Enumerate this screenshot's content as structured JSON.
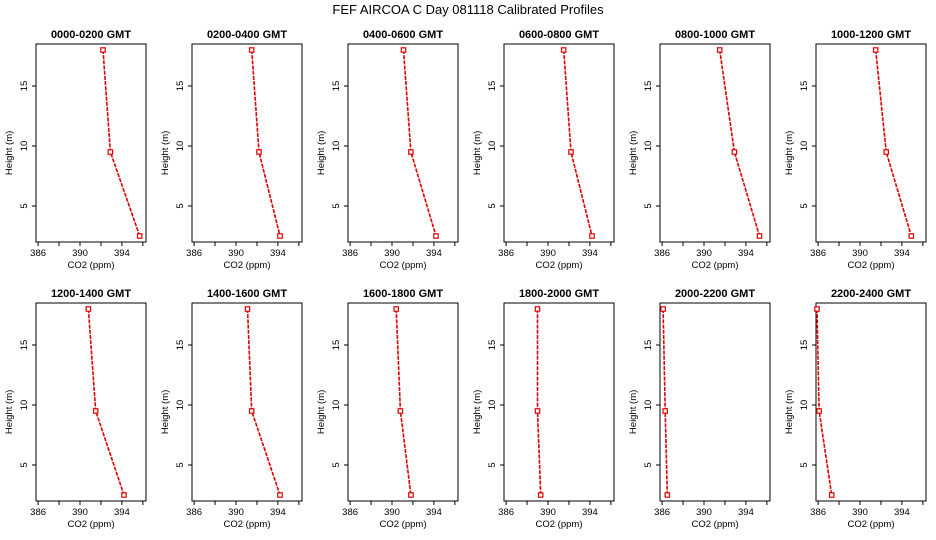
{
  "title": "FEF AIRCOA C  Day 081118  Calibrated Profiles",
  "chart_data": {
    "type": "line",
    "title": "FEF AIRCOA C  Day 081118  Calibrated Profiles",
    "xlabel": "CO2 (ppm)",
    "ylabel": "Height (m)",
    "xlim": [
      385.8,
      396.3
    ],
    "ylim": [
      2.0,
      18.5
    ],
    "x_ticks": [
      386,
      390,
      394
    ],
    "x_minor_ticks": [
      388,
      392,
      396
    ],
    "y_ticks": [
      5,
      10,
      15
    ],
    "panels": [
      {
        "name": "0000-0200 GMT",
        "heights": [
          18,
          9.5,
          2.5
        ],
        "values": [
          392.2,
          392.9,
          395.7
        ]
      },
      {
        "name": "0200-0400 GMT",
        "heights": [
          18,
          9.5,
          2.5
        ],
        "values": [
          391.5,
          392.2,
          394.2
        ]
      },
      {
        "name": "0400-0600 GMT",
        "heights": [
          18,
          9.5,
          2.5
        ],
        "values": [
          391.1,
          391.8,
          394.2
        ]
      },
      {
        "name": "0600-0800 GMT",
        "heights": [
          18,
          9.5,
          2.5
        ],
        "values": [
          391.5,
          392.2,
          394.2
        ]
      },
      {
        "name": "0800-1000 GMT",
        "heights": [
          18,
          9.5,
          2.5
        ],
        "values": [
          391.5,
          392.9,
          395.3
        ]
      },
      {
        "name": "1000-1200 GMT",
        "heights": [
          18,
          9.5,
          2.5
        ],
        "values": [
          391.5,
          392.5,
          394.9
        ]
      },
      {
        "name": "1200-1400 GMT",
        "heights": [
          18,
          9.5,
          2.5
        ],
        "values": [
          390.8,
          391.5,
          394.2
        ]
      },
      {
        "name": "1400-1600 GMT",
        "heights": [
          18,
          9.5,
          2.5
        ],
        "values": [
          391.1,
          391.5,
          394.2
        ]
      },
      {
        "name": "1600-1800 GMT",
        "heights": [
          18,
          9.5,
          2.5
        ],
        "values": [
          390.4,
          390.8,
          391.8
        ]
      },
      {
        "name": "1800-2000 GMT",
        "heights": [
          18,
          9.5,
          2.5
        ],
        "values": [
          389.0,
          389.0,
          389.3
        ]
      },
      {
        "name": "2000-2200 GMT",
        "heights": [
          18,
          9.5,
          2.5
        ],
        "values": [
          386.1,
          386.3,
          386.5
        ]
      },
      {
        "name": "2200-2400 GMT",
        "heights": [
          18,
          9.5,
          2.5
        ],
        "values": [
          385.9,
          386.1,
          387.3
        ]
      }
    ]
  }
}
